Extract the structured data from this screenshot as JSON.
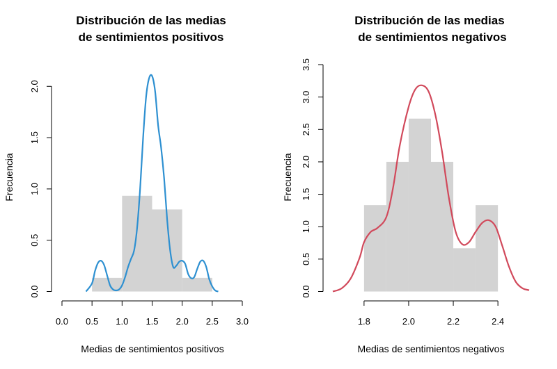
{
  "chart_data": [
    {
      "type": "bar",
      "title_lines": [
        "Distribución de las medias",
        "de sentimientos positivos"
      ],
      "xlabel": "Medias de sentimientos positivos",
      "ylabel": "Frecuencia",
      "xlim": [
        0,
        3
      ],
      "ylim": [
        0,
        2.1
      ],
      "xticks": [
        0,
        0.5,
        1,
        1.5,
        2,
        2.5,
        3
      ],
      "xtick_labels": [
        "0.0",
        "0.5",
        "1.0",
        "1.5",
        "2.0",
        "2.5",
        "3.0"
      ],
      "yticks": [
        0,
        0.5,
        1,
        1.5,
        2
      ],
      "ytick_labels": [
        "0.0",
        "0.5",
        "1.0",
        "1.5",
        "2.0"
      ],
      "bar_color": "#d3d3d3",
      "bars": [
        {
          "x0": 0.5,
          "x1": 1.0,
          "value": 0.133
        },
        {
          "x0": 1.0,
          "x1": 1.5,
          "value": 0.933
        },
        {
          "x0": 1.5,
          "x1": 2.0,
          "value": 0.8
        },
        {
          "x0": 2.0,
          "x1": 2.5,
          "value": 0.133
        }
      ],
      "density": {
        "color": "#2e90d1",
        "x": [
          0.4,
          0.5,
          0.55,
          0.6,
          0.65,
          0.7,
          0.75,
          0.8,
          0.85,
          0.9,
          0.95,
          1.0,
          1.05,
          1.1,
          1.15,
          1.2,
          1.25,
          1.3,
          1.35,
          1.4,
          1.45,
          1.5,
          1.55,
          1.6,
          1.65,
          1.7,
          1.75,
          1.8,
          1.85,
          1.9,
          1.95,
          2.0,
          2.05,
          2.1,
          2.15,
          2.2,
          2.25,
          2.3,
          2.35,
          2.4,
          2.45,
          2.5,
          2.55,
          2.6
        ],
        "y": [
          0.0,
          0.08,
          0.2,
          0.28,
          0.3,
          0.26,
          0.16,
          0.06,
          0.02,
          0.01,
          0.02,
          0.06,
          0.14,
          0.24,
          0.32,
          0.4,
          0.62,
          1.0,
          1.5,
          1.9,
          2.08,
          2.1,
          1.95,
          1.62,
          1.4,
          1.1,
          0.7,
          0.4,
          0.24,
          0.25,
          0.29,
          0.3,
          0.27,
          0.17,
          0.13,
          0.14,
          0.22,
          0.29,
          0.3,
          0.24,
          0.12,
          0.05,
          0.01,
          0.0
        ]
      }
    },
    {
      "type": "bar",
      "title_lines": [
        "Distribución de las medias",
        "de sentimientos negativos"
      ],
      "xlabel": "Medias de sentimientos negativos",
      "ylabel": "Frecuencia",
      "xlim": [
        1.66,
        2.54
      ],
      "ylim": [
        0,
        3.5
      ],
      "xticks": [
        1.8,
        2.0,
        2.2,
        2.4
      ],
      "xtick_labels": [
        "1.8",
        "2.0",
        "2.2",
        "2.4"
      ],
      "yticks": [
        0,
        0.5,
        1,
        1.5,
        2,
        2.5,
        3,
        3.5
      ],
      "ytick_labels": [
        "0.0",
        "0.5",
        "1.0",
        "1.5",
        "2.0",
        "2.5",
        "3.0",
        "3.5"
      ],
      "bar_color": "#d3d3d3",
      "bars": [
        {
          "x0": 1.8,
          "x1": 1.9,
          "value": 1.333
        },
        {
          "x0": 1.9,
          "x1": 2.0,
          "value": 2.0
        },
        {
          "x0": 2.0,
          "x1": 2.1,
          "value": 2.667
        },
        {
          "x0": 2.1,
          "x1": 2.2,
          "value": 2.0
        },
        {
          "x0": 2.2,
          "x1": 2.3,
          "value": 0.667
        },
        {
          "x0": 2.3,
          "x1": 2.4,
          "value": 1.333
        }
      ],
      "density": {
        "color": "#d1495b",
        "x": [
          1.66,
          1.7,
          1.74,
          1.78,
          1.8,
          1.83,
          1.86,
          1.9,
          1.93,
          1.96,
          2.0,
          2.03,
          2.06,
          2.09,
          2.12,
          2.15,
          2.18,
          2.21,
          2.24,
          2.27,
          2.3,
          2.33,
          2.36,
          2.39,
          2.42,
          2.45,
          2.48,
          2.51,
          2.54
        ],
        "y": [
          0.0,
          0.05,
          0.2,
          0.52,
          0.76,
          0.92,
          0.98,
          1.15,
          1.6,
          2.25,
          2.85,
          3.12,
          3.18,
          3.08,
          2.72,
          2.15,
          1.45,
          0.93,
          0.73,
          0.76,
          0.92,
          1.06,
          1.1,
          1.0,
          0.7,
          0.38,
          0.15,
          0.05,
          0.02
        ]
      }
    }
  ]
}
